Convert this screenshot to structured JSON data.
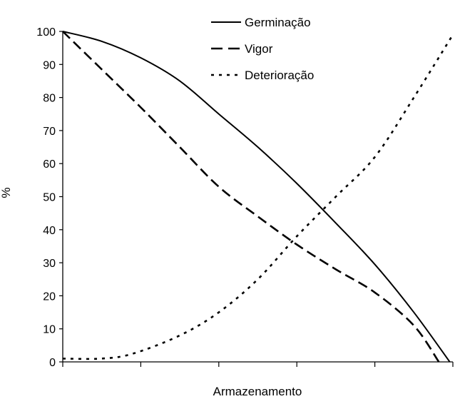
{
  "chart_data": {
    "type": "line",
    "title": "",
    "xlabel": "Armazenamento",
    "ylabel": "%",
    "xlim": [
      0,
      5
    ],
    "ylim": [
      0,
      100
    ],
    "yticks": [
      0,
      10,
      20,
      30,
      40,
      50,
      60,
      70,
      80,
      90,
      100
    ],
    "xticks": [
      0,
      1,
      2,
      3,
      4,
      5
    ],
    "grid": false,
    "legend_position": "top-right",
    "series": [
      {
        "name": "Germinação",
        "style": "solid",
        "x": [
          0,
          0.5,
          1,
          1.5,
          2,
          2.5,
          3,
          3.5,
          4,
          4.5,
          4.96
        ],
        "y": [
          100,
          97,
          92,
          85,
          75,
          65,
          54,
          42,
          29.5,
          15,
          0
        ]
      },
      {
        "name": "Vigor",
        "style": "dashed",
        "x": [
          0,
          0.5,
          1,
          1.5,
          2,
          2.5,
          3,
          3.5,
          4,
          4.5,
          4.82
        ],
        "y": [
          100,
          88.5,
          77,
          65,
          53,
          44,
          35.5,
          28,
          21,
          11,
          0
        ]
      },
      {
        "name": "Deterioração",
        "style": "dotted",
        "x": [
          0,
          0.5,
          0.9,
          1.5,
          2,
          2.5,
          3,
          3.5,
          4,
          4.5,
          5
        ],
        "y": [
          1,
          1,
          2.5,
          8,
          15,
          25,
          38,
          50,
          62,
          80,
          99
        ]
      }
    ],
    "colors": {
      "line": "#000000"
    }
  }
}
